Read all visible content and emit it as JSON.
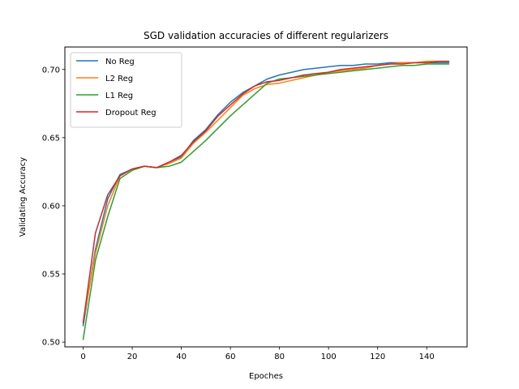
{
  "chart_data": {
    "type": "line",
    "title": "SGD validation accuracies of different regularizers",
    "xlabel": "Epoches",
    "ylabel": "Validating Accuracy",
    "xlim": [
      -7.45,
      156.45
    ],
    "ylim": [
      0.4965,
      0.7165
    ],
    "xticks": [
      0,
      20,
      40,
      60,
      80,
      100,
      120,
      140
    ],
    "yticks": [
      0.5,
      0.55,
      0.6,
      0.65,
      0.7
    ],
    "xtick_labels": [
      "0",
      "20",
      "40",
      "60",
      "80",
      "100",
      "120",
      "140"
    ],
    "ytick_labels": [
      "0.50",
      "0.55",
      "0.60",
      "0.65",
      "0.70"
    ],
    "grid": false,
    "legend_position": "upper left",
    "x": [
      0,
      5,
      10,
      15,
      20,
      25,
      30,
      35,
      40,
      45,
      50,
      55,
      60,
      65,
      70,
      75,
      80,
      85,
      90,
      95,
      100,
      105,
      110,
      115,
      120,
      125,
      130,
      135,
      140,
      145,
      149
    ],
    "series": [
      {
        "name": "No Reg",
        "color": "#1f77b4",
        "values": [
          0.512,
          0.568,
          0.605,
          0.623,
          0.627,
          0.629,
          0.628,
          0.632,
          0.636,
          0.648,
          0.656,
          0.667,
          0.676,
          0.683,
          0.688,
          0.693,
          0.696,
          0.698,
          0.7,
          0.701,
          0.702,
          0.703,
          0.703,
          0.704,
          0.704,
          0.705,
          0.705,
          0.705,
          0.705,
          0.705,
          0.705
        ]
      },
      {
        "name": "L2 Reg",
        "color": "#ff7f0e",
        "values": [
          0.515,
          0.565,
          0.6,
          0.622,
          0.627,
          0.629,
          0.628,
          0.631,
          0.635,
          0.646,
          0.654,
          0.663,
          0.672,
          0.681,
          0.686,
          0.689,
          0.69,
          0.692,
          0.694,
          0.696,
          0.698,
          0.699,
          0.7,
          0.701,
          0.703,
          0.704,
          0.705,
          0.705,
          0.706,
          0.706,
          0.706
        ]
      },
      {
        "name": "L1 Reg",
        "color": "#2ca02c",
        "values": [
          0.502,
          0.56,
          0.592,
          0.62,
          0.626,
          0.629,
          0.628,
          0.629,
          0.632,
          0.64,
          0.648,
          0.657,
          0.666,
          0.674,
          0.682,
          0.69,
          0.693,
          0.694,
          0.695,
          0.696,
          0.697,
          0.698,
          0.699,
          0.7,
          0.701,
          0.702,
          0.703,
          0.703,
          0.704,
          0.704,
          0.704
        ]
      },
      {
        "name": "Dropout Reg",
        "color": "#d62728",
        "values": [
          0.514,
          0.58,
          0.608,
          0.622,
          0.627,
          0.629,
          0.628,
          0.632,
          0.637,
          0.647,
          0.655,
          0.666,
          0.674,
          0.682,
          0.688,
          0.691,
          0.692,
          0.694,
          0.696,
          0.697,
          0.698,
          0.7,
          0.701,
          0.702,
          0.703,
          0.704,
          0.704,
          0.705,
          0.705,
          0.706,
          0.706
        ]
      }
    ]
  }
}
